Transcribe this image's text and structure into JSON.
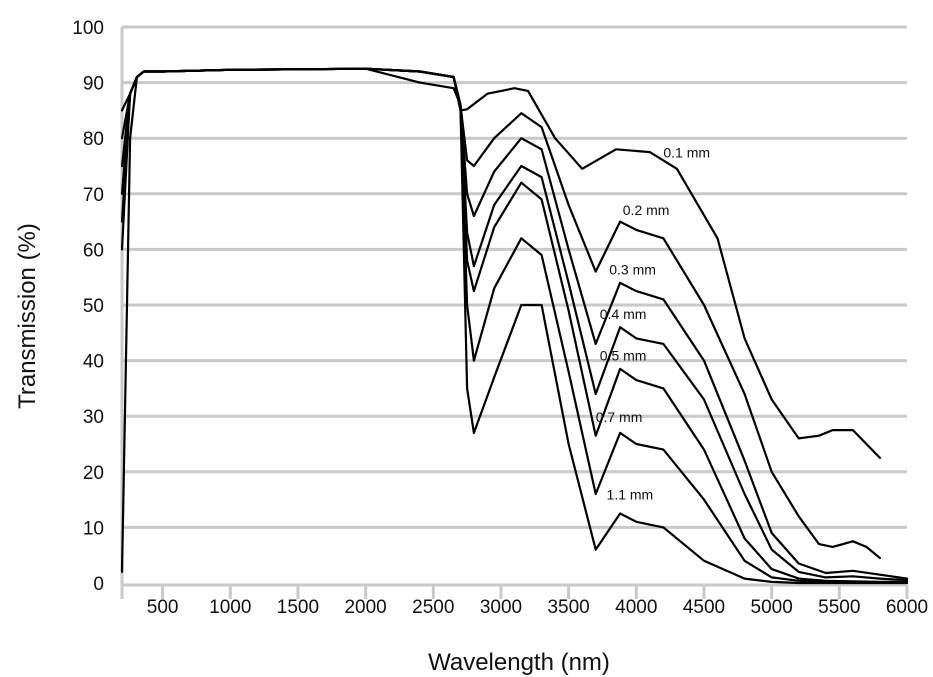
{
  "chart_data": {
    "type": "line",
    "xlabel": "Wavelength (nm)",
    "ylabel": "Transmission (%)",
    "xlim": [
      200,
      6000
    ],
    "ylim": [
      0,
      100
    ],
    "x_ticks": [
      500,
      1000,
      1500,
      2000,
      2500,
      3000,
      3500,
      4000,
      4500,
      5000,
      5500,
      6000
    ],
    "y_ticks": [
      0,
      10,
      20,
      30,
      40,
      50,
      60,
      70,
      80,
      90,
      100
    ],
    "grid": "horizontal",
    "legend": "inline labels",
    "series": [
      {
        "name": "0.1 mm",
        "label_at": [
          4200,
          76.5
        ],
        "x": [
          200,
          260,
          310,
          360,
          500,
          1000,
          1500,
          2000,
          2400,
          2650,
          2700,
          2750,
          2900,
          3100,
          3200,
          3400,
          3600,
          3850,
          4100,
          4300,
          4600,
          4800,
          5000,
          5200,
          5350,
          5450,
          5600,
          5700,
          5800
        ],
        "y": [
          60,
          88,
          91,
          92,
          92,
          92.3,
          92.4,
          92.5,
          92,
          91,
          85,
          85.2,
          88,
          89,
          88.5,
          80,
          74.5,
          78,
          77.5,
          74.5,
          62,
          44,
          33,
          26,
          26.5,
          27.5,
          27.5,
          25,
          22.5
        ]
      },
      {
        "name": "0.2 mm",
        "label_at": [
          3900,
          66.2
        ],
        "x": [
          200,
          260,
          310,
          360,
          500,
          1000,
          1500,
          2000,
          2400,
          2650,
          2700,
          2750,
          2800,
          2950,
          3150,
          3300,
          3500,
          3700,
          3880,
          4000,
          4200,
          4500,
          4800,
          5000,
          5200,
          5350,
          5450,
          5600,
          5700,
          5800
        ],
        "y": [
          65,
          88,
          91,
          92,
          92,
          92.3,
          92.4,
          92.5,
          92,
          91,
          86,
          76,
          75,
          80,
          84.5,
          82,
          68,
          56,
          65,
          63.5,
          62,
          50,
          34,
          20,
          12,
          7,
          6.5,
          7.5,
          6.5,
          4.5
        ]
      },
      {
        "name": "0.3 mm",
        "label_at": [
          3800,
          55.5
        ],
        "x": [
          200,
          260,
          310,
          360,
          500,
          1000,
          1500,
          2000,
          2400,
          2650,
          2700,
          2750,
          2800,
          2950,
          3150,
          3300,
          3500,
          3700,
          3880,
          4000,
          4200,
          4500,
          4800,
          5000,
          5200,
          5400,
          5600,
          5800,
          6000
        ],
        "y": [
          70,
          88,
          91,
          92,
          92,
          92.3,
          92.4,
          92.5,
          92,
          91,
          86,
          70,
          66,
          74,
          80,
          78,
          60,
          43,
          54,
          52.5,
          51,
          40,
          22,
          9,
          3.5,
          1.8,
          2.2,
          1.5,
          0.8
        ]
      },
      {
        "name": "0.4 mm",
        "label_at": [
          3730,
          47.5
        ],
        "x": [
          200,
          260,
          310,
          360,
          500,
          1000,
          1500,
          2000,
          2400,
          2650,
          2700,
          2750,
          2800,
          2950,
          3150,
          3300,
          3500,
          3700,
          3880,
          4000,
          4200,
          4500,
          4800,
          5000,
          5200,
          5400,
          5600,
          5800,
          6000
        ],
        "y": [
          75,
          88,
          91,
          92,
          92,
          92.3,
          92.4,
          92.5,
          92,
          91,
          86,
          63,
          57,
          68,
          75,
          73,
          54,
          34,
          46,
          44,
          43,
          33,
          16,
          6,
          2,
          1,
          1.2,
          0.8,
          0.5
        ]
      },
      {
        "name": "0.5 mm",
        "label_at": [
          3730,
          40.0
        ],
        "x": [
          200,
          260,
          310,
          360,
          500,
          1000,
          1500,
          2000,
          2400,
          2650,
          2700,
          2750,
          2800,
          2950,
          3150,
          3300,
          3500,
          3700,
          3880,
          4000,
          4200,
          4500,
          4800,
          5000,
          5200,
          5400,
          5600,
          5800,
          6000
        ],
        "y": [
          80,
          88,
          91,
          92,
          92,
          92.3,
          92.4,
          92.5,
          92,
          91,
          86,
          58,
          52.5,
          64,
          72,
          69,
          49,
          26.5,
          38.5,
          36.5,
          35,
          24,
          8,
          2.5,
          0.8,
          0.4,
          0.3,
          0.2,
          0.2
        ]
      },
      {
        "name": "0.7 mm",
        "label_at": [
          3700,
          29.0
        ],
        "x": [
          200,
          260,
          310,
          360,
          500,
          1000,
          1500,
          2000,
          2400,
          2650,
          2700,
          2750,
          2800,
          2950,
          3150,
          3300,
          3500,
          3700,
          3880,
          4000,
          4200,
          4500,
          4800,
          5000,
          5200,
          5400,
          5600,
          5800,
          6000
        ],
        "y": [
          85,
          88,
          91,
          92,
          92,
          92.3,
          92.4,
          92.5,
          92,
          91,
          86,
          50,
          40,
          53,
          62,
          59,
          38,
          16,
          27,
          25,
          24,
          15,
          4,
          1,
          0.4,
          0.2,
          0.1,
          0.1,
          0.1
        ]
      },
      {
        "name": "1.1 mm",
        "label_at": [
          3780,
          15.0
        ],
        "x": [
          200,
          260,
          310,
          360,
          500,
          1000,
          1500,
          2000,
          2400,
          2650,
          2700,
          2750,
          2800,
          2950,
          3150,
          3300,
          3500,
          3700,
          3880,
          4000,
          4200,
          4500,
          4800,
          5000,
          5200,
          5400,
          5600,
          5800,
          6000
        ],
        "y": [
          2,
          80,
          91,
          92,
          92,
          92.3,
          92.4,
          92.5,
          90,
          89,
          86,
          35,
          27,
          37,
          50,
          50,
          25,
          6,
          12.5,
          11,
          10,
          4,
          0.8,
          0.2,
          0,
          0,
          0,
          0,
          0
        ]
      }
    ]
  }
}
